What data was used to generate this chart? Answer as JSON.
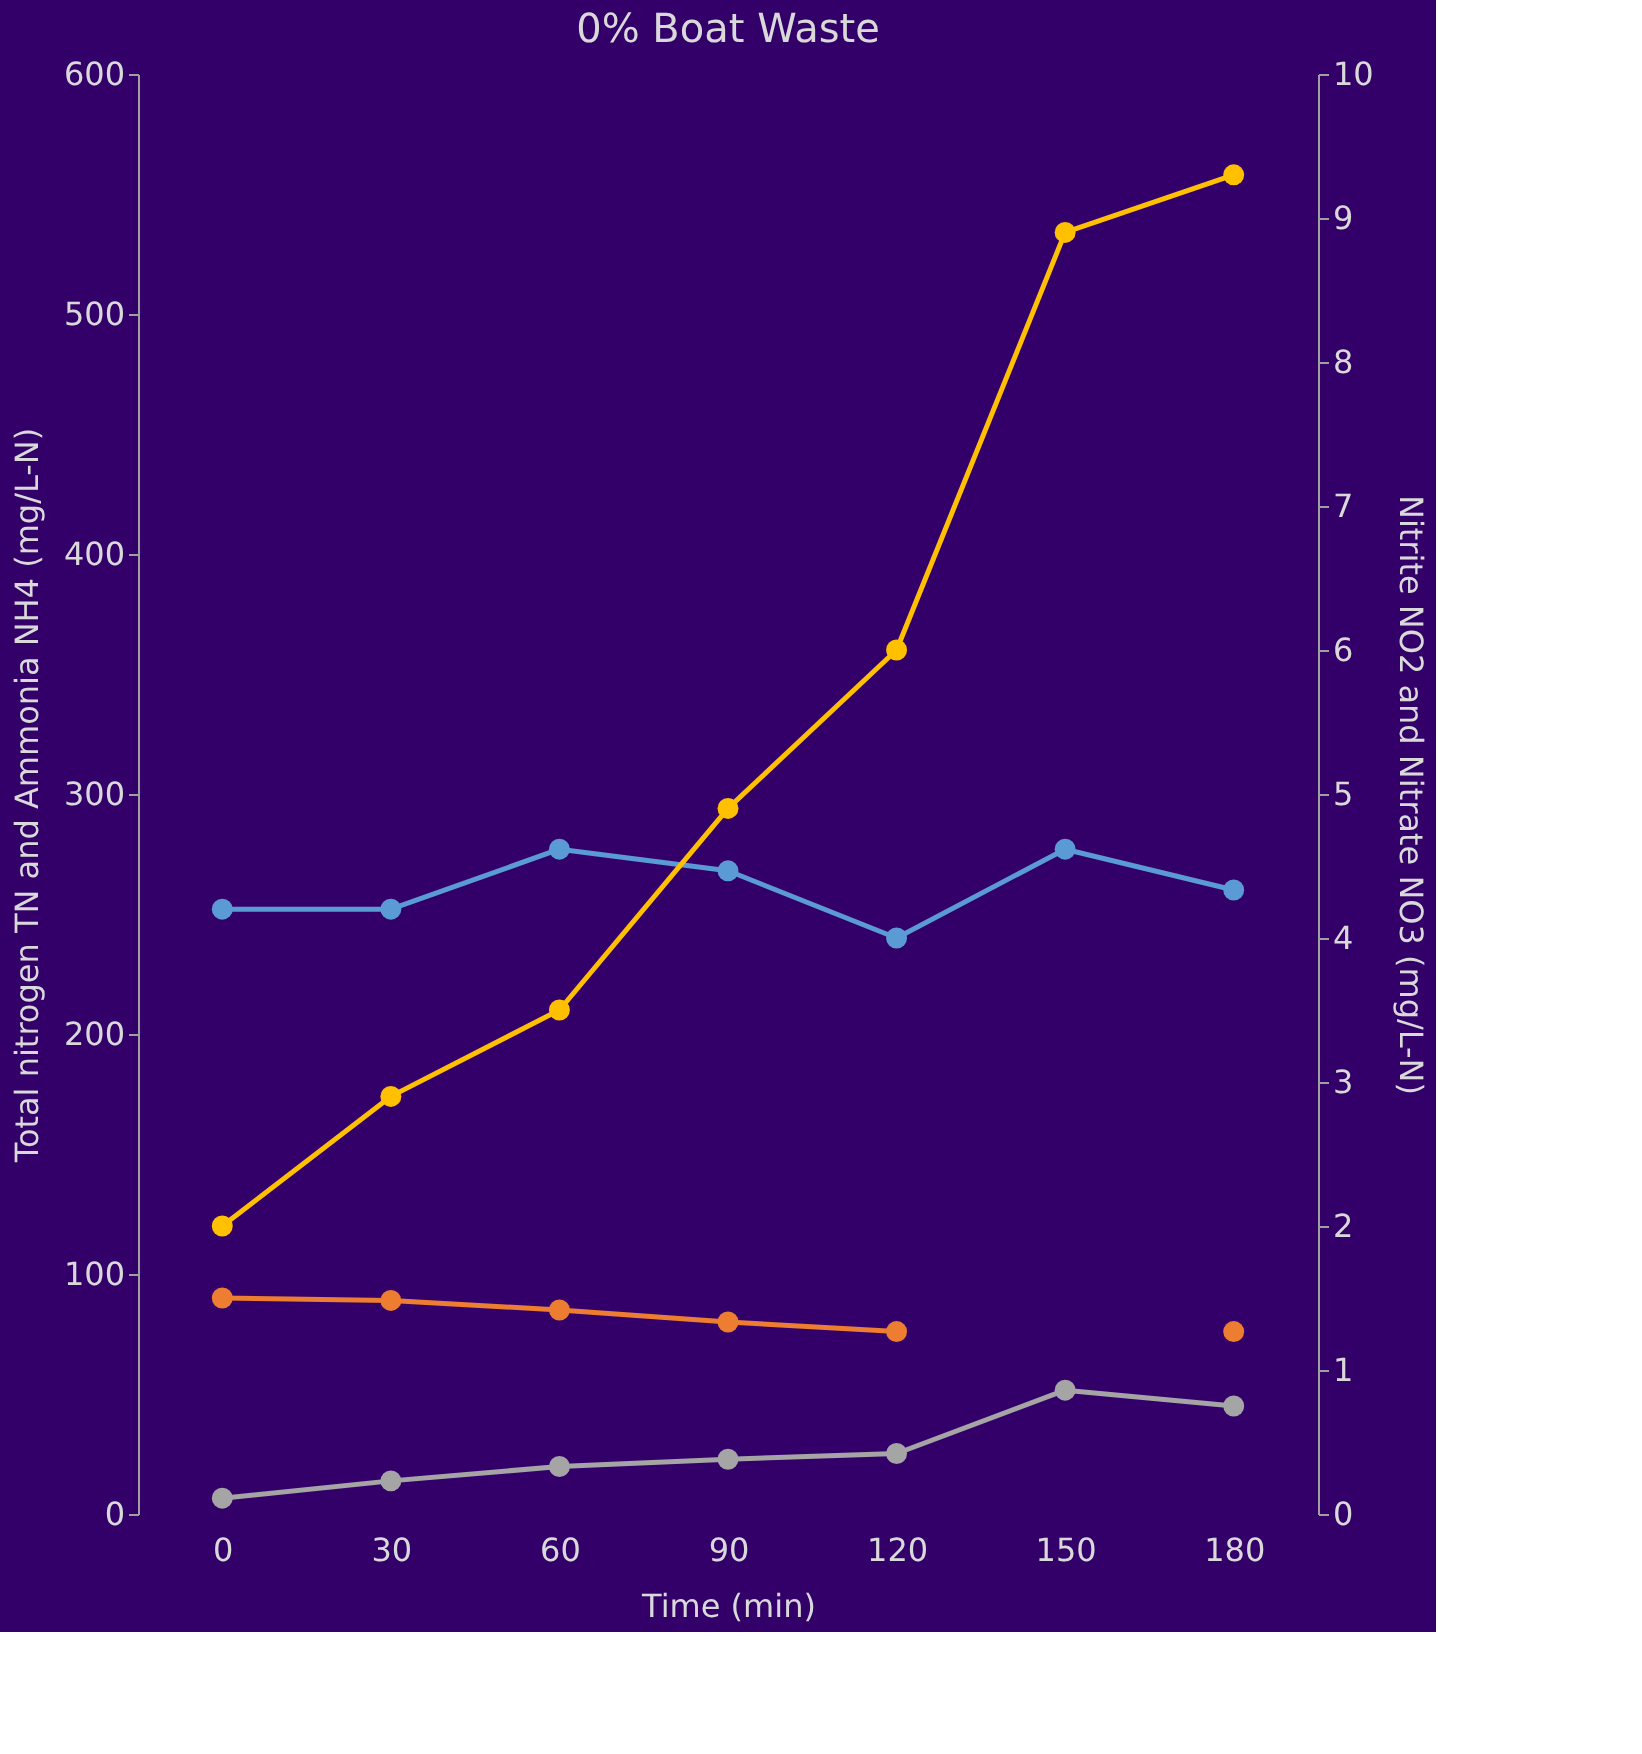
{
  "chart_data": {
    "type": "line",
    "title": "0% Boat Waste",
    "xlabel": "Time (min)",
    "ylabel": "Total nitrogen TN and Ammonia NH4 (mg/L-N)",
    "y2label": "Nitrite NO2 and Nitrate NO3 (mg/L-N)",
    "categories": [
      "0",
      "30",
      "60",
      "90",
      "120",
      "150",
      "180"
    ],
    "series": [
      {
        "color": "#5b9bd5",
        "values": [
          252,
          252,
          277,
          268,
          240,
          277,
          260
        ]
      },
      {
        "color": "#ed7d31",
        "values": [
          90,
          89,
          85,
          80,
          76,
          null,
          76
        ]
      },
      {
        "color": "#ffc000",
        "axis": "y2",
        "values": [
          2.0,
          2.9,
          3.5,
          4.9,
          6.0,
          8.9,
          9.3
        ]
      },
      {
        "color": "#a5a5a5",
        "axis": "y2",
        "values": [
          0.11,
          0.23,
          0.33,
          0.38,
          0.42,
          0.86,
          0.75
        ]
      }
    ],
    "ylim": [
      0,
      600
    ],
    "yticks": [
      0,
      100,
      200,
      300,
      400,
      500,
      600
    ],
    "y2lim": [
      0,
      10
    ],
    "y2ticks": [
      0,
      1,
      2,
      3,
      4,
      5,
      6,
      7,
      8,
      9,
      10
    ],
    "marker": "circle",
    "line_style": "solid",
    "grid": false
  }
}
